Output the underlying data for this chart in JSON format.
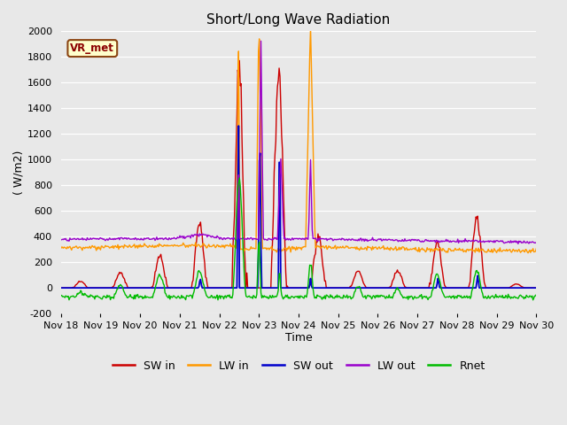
{
  "title": "Short/Long Wave Radiation",
  "xlabel": "Time",
  "ylabel": "( W/m2)",
  "ylim": [
    -200,
    2000
  ],
  "xlim": [
    0,
    12
  ],
  "xtick_labels": [
    "Nov 18",
    "Nov 19",
    "Nov 20",
    "Nov 21",
    "Nov 22",
    "Nov 23",
    "Nov 24",
    "Nov 25",
    "Nov 26",
    "Nov 27",
    "Nov 28",
    "Nov 29",
    "Nov 30"
  ],
  "annotation": "VR_met",
  "fig_bg_color": "#e8e8e8",
  "plot_bg": "#e8e8e8",
  "series_colors": {
    "SW_in": "#cc0000",
    "LW_in": "#ff9900",
    "SW_out": "#0000cc",
    "LW_out": "#9900cc",
    "Rnet": "#00bb00"
  },
  "legend_labels": [
    "SW in",
    "LW in",
    "SW out",
    "LW out",
    "Rnet"
  ]
}
